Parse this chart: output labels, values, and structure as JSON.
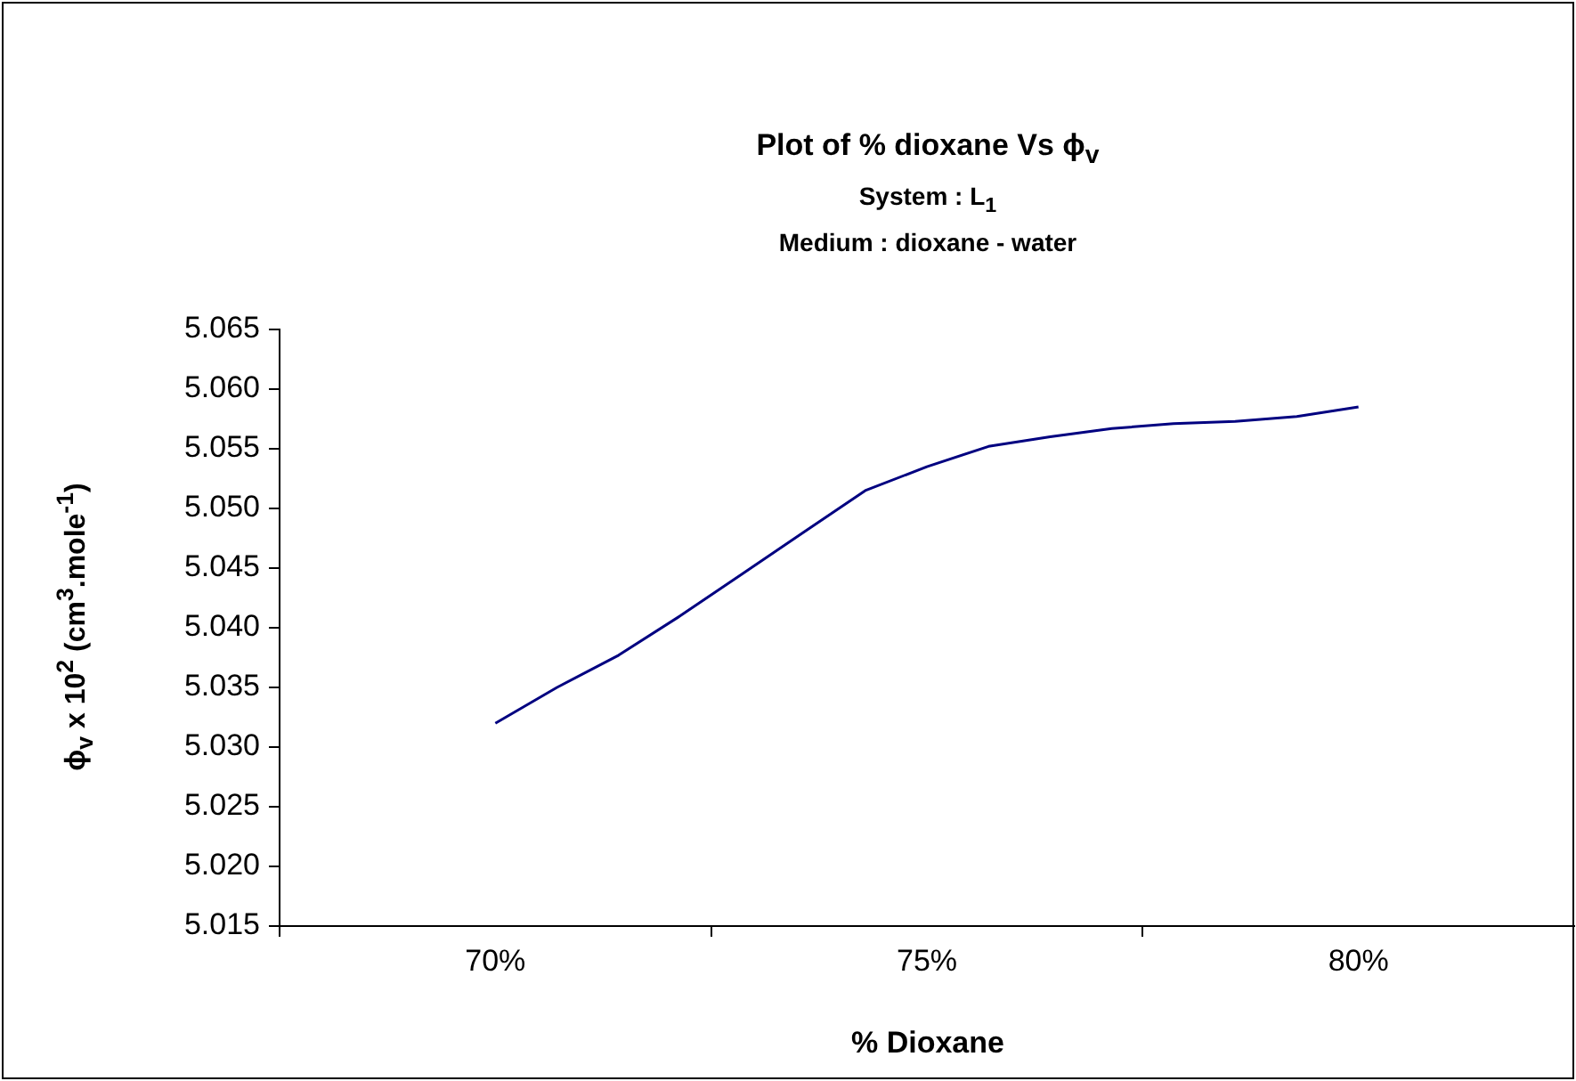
{
  "chart_data": {
    "type": "line",
    "title": "Plot of % dioxane Vs ϕ$_{v}$",
    "subtitle": "System : L$_{1}$\nMedium : dioxane - water",
    "xlabel": "% Dioxane",
    "ylabel": "ϕ$_{v}$ x 10$^{2}$ (cm$^{3}$.mole$^{-1}$)",
    "categories": [
      null,
      null,
      null,
      "70%",
      null,
      null,
      null,
      null,
      null,
      null,
      "75%",
      null,
      null,
      null,
      null,
      null,
      null,
      "80%",
      null,
      null,
      null
    ],
    "series": [
      {
        "color": "#000080",
        "values": [
          null,
          null,
          null,
          5.032,
          5.035,
          5.0377,
          5.041,
          5.0445,
          5.048,
          5.0515,
          5.0535,
          5.0552,
          5.056,
          5.0567,
          5.0571,
          5.0573,
          5.0577,
          5.0585,
          null,
          null,
          null
        ]
      }
    ],
    "ylim": [
      5.015,
      5.065
    ],
    "yticks": [
      {
        "value": 5.015,
        "label": "5.015"
      },
      {
        "value": 5.02,
        "label": "5.020"
      },
      {
        "value": 5.025,
        "label": "5.025"
      },
      {
        "value": 5.03,
        "label": "5.030"
      },
      {
        "value": 5.035,
        "label": "5.035"
      },
      {
        "value": 5.04,
        "label": "5.040"
      },
      {
        "value": 5.045,
        "label": "5.045"
      },
      {
        "value": 5.05,
        "label": "5.050"
      },
      {
        "value": 5.055,
        "label": "5.055"
      },
      {
        "value": 5.06,
        "label": "5.060"
      },
      {
        "value": 5.065,
        "label": "5.065"
      }
    ],
    "grid": false,
    "legend": false,
    "marker": "none",
    "line_style": "solid"
  }
}
